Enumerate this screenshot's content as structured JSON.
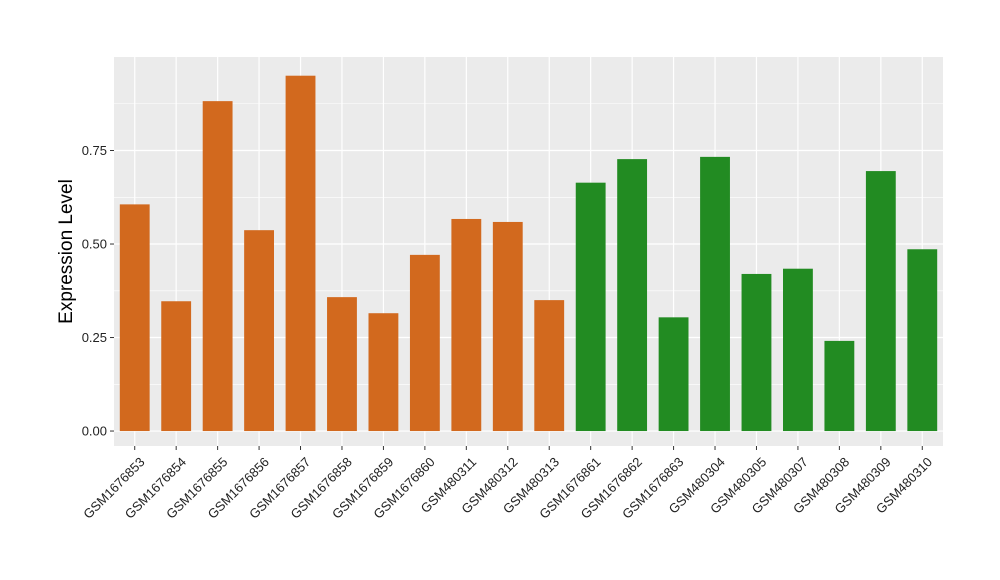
{
  "chart_data": {
    "type": "bar",
    "title": "",
    "xlabel": "",
    "ylabel": "Expression Level",
    "ylim": [
      -0.04,
      1.0
    ],
    "yticks": [
      0.0,
      0.25,
      0.5,
      0.75
    ],
    "ytick_labels": [
      "0.00",
      "0.25",
      "0.50",
      "0.75"
    ],
    "grid": true,
    "legend": "none",
    "colors": {
      "panel_background": "#ebebeb",
      "gridline": "#ffffff",
      "group_orange": "#d2691e",
      "group_green": "#228b22"
    },
    "categories": [
      "GSM1676853",
      "GSM1676854",
      "GSM1676855",
      "GSM1676856",
      "GSM1676857",
      "GSM1676858",
      "GSM1676859",
      "GSM1676860",
      "GSM480311",
      "GSM480312",
      "GSM480313",
      "GSM1676861",
      "GSM1676862",
      "GSM1676863",
      "GSM480304",
      "GSM480305",
      "GSM480307",
      "GSM480308",
      "GSM480309",
      "GSM480310"
    ],
    "values": [
      0.606,
      0.347,
      0.882,
      0.537,
      0.95,
      0.358,
      0.315,
      0.471,
      0.567,
      0.559,
      0.35,
      0.664,
      0.727,
      0.304,
      0.733,
      0.42,
      0.434,
      0.241,
      0.695,
      0.486
    ],
    "bar_groups": [
      "orange",
      "orange",
      "orange",
      "orange",
      "orange",
      "orange",
      "orange",
      "orange",
      "orange",
      "orange",
      "orange",
      "green",
      "green",
      "green",
      "green",
      "green",
      "green",
      "green",
      "green",
      "green"
    ]
  }
}
